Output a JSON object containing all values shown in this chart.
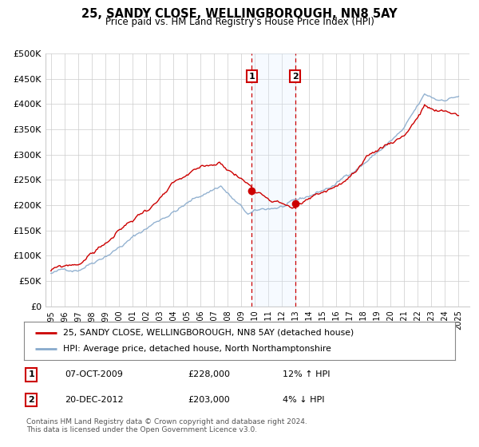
{
  "title": "25, SANDY CLOSE, WELLINGBOROUGH, NN8 5AY",
  "subtitle": "Price paid vs. HM Land Registry's House Price Index (HPI)",
  "legend_line1": "25, SANDY CLOSE, WELLINGBOROUGH, NN8 5AY (detached house)",
  "legend_line2": "HPI: Average price, detached house, North Northamptonshire",
  "annotation1_label": "1",
  "annotation1_date": "07-OCT-2009",
  "annotation1_price": "£228,000",
  "annotation1_hpi": "12% ↑ HPI",
  "annotation2_label": "2",
  "annotation2_date": "20-DEC-2012",
  "annotation2_price": "£203,000",
  "annotation2_hpi": "4% ↓ HPI",
  "footnote": "Contains HM Land Registry data © Crown copyright and database right 2024.\nThis data is licensed under the Open Government Licence v3.0.",
  "red_color": "#cc0000",
  "blue_color": "#88aacc",
  "shade_color": "#ddeeff",
  "grid_color": "#cccccc",
  "annotation_box_color": "#cc0000",
  "ylim": [
    0,
    500000
  ],
  "yticks": [
    0,
    50000,
    100000,
    150000,
    200000,
    250000,
    300000,
    350000,
    400000,
    450000,
    500000
  ],
  "ytick_labels": [
    "£0",
    "£50K",
    "£100K",
    "£150K",
    "£200K",
    "£250K",
    "£300K",
    "£350K",
    "£400K",
    "£450K",
    "£500K"
  ],
  "year_start": 1995,
  "year_end": 2025,
  "sale1_year": 2009.77,
  "sale1_price": 228000,
  "sale2_year": 2012.97,
  "sale2_price": 203000
}
